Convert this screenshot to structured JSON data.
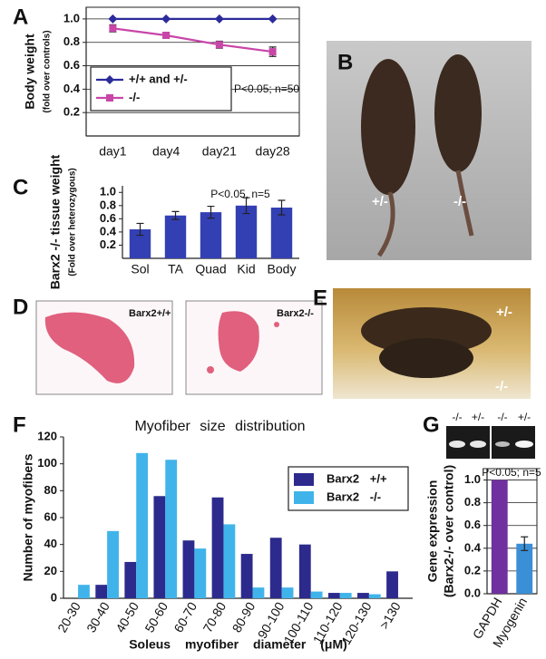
{
  "panel_letters": [
    "A",
    "B",
    "C",
    "D",
    "E",
    "F",
    "G"
  ],
  "photos": {
    "b": [
      "+/-",
      "-/-"
    ],
    "d": [
      "Barx2+/+",
      "Barx2-/-"
    ],
    "e": [
      "+/-",
      "-/-"
    ],
    "g": [
      "-/-",
      "+/-",
      "-/-",
      "+/-"
    ]
  },
  "chart_data": [
    {
      "type": "line",
      "ylabel": "Body weight",
      "ylabel_sub": "(fold over controls)",
      "annotation": "P<0.05; n=50",
      "categories": [
        "day1",
        "day4",
        "day21",
        "day28"
      ],
      "series": [
        {
          "name": "+/+ and +/-",
          "color": "#2b2b9c",
          "marker": "diamond",
          "values": [
            1.0,
            1.0,
            1.0,
            1.0
          ]
        },
        {
          "name": "-/-",
          "color": "#c846a8",
          "marker": "square",
          "values": [
            0.92,
            0.86,
            0.78,
            0.72
          ],
          "errors": [
            0.03,
            0.02,
            0.03,
            0.04
          ]
        }
      ],
      "ylim": [
        0,
        1.1
      ],
      "yticks": [
        {
          "value": 0.2,
          "label": "0.2"
        },
        {
          "value": 0.4,
          "label": "0.4"
        },
        {
          "value": 0.6,
          "label": "0.6"
        },
        {
          "value": 0.8,
          "label": "0.8"
        },
        {
          "value": 1,
          "label": "1.0"
        }
      ],
      "grid": true,
      "legend": "lower left"
    },
    {
      "type": "bar",
      "ylabel": "Barx2 -/- tissue weight",
      "ylabel_sub": "(Fold over heterozygous)",
      "annotation": "P<0.05,  n=5",
      "categories": [
        "Sol",
        "TA",
        "Quad",
        "Kid",
        "Body"
      ],
      "values": [
        0.44,
        0.65,
        0.7,
        0.8,
        0.77
      ],
      "errors": [
        0.09,
        0.06,
        0.09,
        0.12,
        0.11
      ],
      "color": "#3340b4",
      "ylim": [
        0,
        1.1
      ],
      "yticks": [
        {
          "value": 0.2,
          "label": "0.2"
        },
        {
          "value": 0.4,
          "label": "0.4"
        },
        {
          "value": 0.6,
          "label": "0.6"
        },
        {
          "value": 0.8,
          "label": "0.8"
        },
        {
          "value": 1,
          "label": "1.0"
        }
      ],
      "grid": false
    },
    {
      "type": "bar",
      "title": "Myofiber size distribution",
      "ylabel": "Number of myofibers",
      "xlabel": "Soleus myofiber diameter (μM)",
      "categories": [
        "20-30",
        "30-40",
        "40-50",
        "50-60",
        "60-70",
        "70-80",
        "80-90",
        "90-100",
        "100-110",
        "110-120",
        "120-130",
        ">130"
      ],
      "series": [
        {
          "name": "Barx2 +/+",
          "color": "#2c2a8c",
          "values": [
            0,
            10,
            27,
            76,
            43,
            75,
            33,
            45,
            40,
            4,
            4,
            20
          ]
        },
        {
          "name": "Barx2 -/-",
          "color": "#40b4ea",
          "values": [
            10,
            50,
            108,
            103,
            37,
            55,
            8,
            8,
            5,
            4,
            3,
            0
          ]
        }
      ],
      "ylim": [
        0,
        120
      ],
      "yticks": [
        0,
        20,
        40,
        60,
        80,
        100,
        120
      ],
      "grid": false,
      "legend": "upper right"
    },
    {
      "type": "bar",
      "ylabel": "Gene expression",
      "ylabel_sub": "(Barx2-/- over control)",
      "annotation": "P<0.05; n=5",
      "categories": [
        "GAPDH",
        "Myogenin"
      ],
      "values": [
        1.0,
        0.44
      ],
      "errors": [
        null,
        0.06
      ],
      "colors": [
        "#7030a0",
        "#3a8fd6"
      ],
      "ylim": [
        0,
        1.1
      ],
      "yticks": [
        {
          "value": 0,
          "label": "0.0"
        },
        {
          "value": 0.2,
          "label": "0.2"
        },
        {
          "value": 0.4,
          "label": "0.4"
        },
        {
          "value": 0.6,
          "label": "0.6"
        },
        {
          "value": 0.8,
          "label": "0.8"
        },
        {
          "value": 1,
          "label": "1.0"
        }
      ],
      "grid": true
    }
  ]
}
